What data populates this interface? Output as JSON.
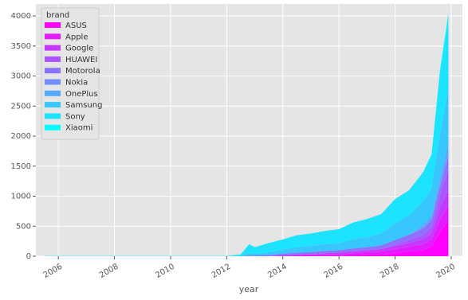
{
  "chart_data": {
    "type": "stacked_area",
    "x_label": "year",
    "legend_title": "brand",
    "legend": "upper left",
    "grid": true,
    "x": [
      2005.5,
      2006,
      2007,
      2008,
      2009,
      2010,
      2011,
      2012,
      2012.5,
      2012.8,
      2013,
      2013.5,
      2014,
      2014.5,
      2015,
      2015.5,
      2016,
      2016.5,
      2017,
      2017.5,
      2018,
      2018.5,
      2019,
      2019.3,
      2019.6,
      2019.9
    ],
    "xlim": [
      2005.2,
      2020.4
    ],
    "xticks": [
      2006,
      2008,
      2010,
      2012,
      2014,
      2016,
      2018,
      2020
    ],
    "ylim": [
      0,
      4200
    ],
    "yticks": [
      0,
      500,
      1000,
      1500,
      2000,
      2500,
      3000,
      3500,
      4000
    ],
    "series": [
      {
        "name": "ASUS",
        "color": "#ff00ff",
        "values": [
          0,
          0,
          0,
          0,
          0,
          0,
          0,
          0,
          0,
          0,
          0,
          0,
          0,
          0,
          0,
          0,
          0,
          10,
          20,
          20,
          50,
          80,
          100,
          160,
          400,
          600
        ]
      },
      {
        "name": "Apple",
        "color": "#e31cff",
        "values": [
          0,
          0,
          0,
          0,
          0,
          0,
          0,
          0,
          0,
          0,
          0,
          0,
          10,
          20,
          30,
          30,
          30,
          40,
          50,
          60,
          70,
          80,
          100,
          120,
          200,
          250
        ]
      },
      {
        "name": "Google",
        "color": "#c638ff",
        "values": [
          0,
          0,
          0,
          0,
          0,
          0,
          0,
          0,
          0,
          0,
          0,
          0,
          0,
          0,
          0,
          20,
          30,
          30,
          30,
          40,
          50,
          60,
          80,
          100,
          200,
          250
        ]
      },
      {
        "name": "HUAWEI",
        "color": "#aa55ff",
        "values": [
          0,
          0,
          0,
          0,
          0,
          0,
          0,
          0,
          0,
          0,
          0,
          0,
          0,
          0,
          0,
          0,
          0,
          0,
          0,
          0,
          20,
          50,
          80,
          100,
          200,
          350
        ]
      },
      {
        "name": "Motorola",
        "color": "#8e71ff",
        "values": [
          0,
          0,
          0,
          0,
          0,
          0,
          0,
          0,
          0,
          10,
          10,
          20,
          30,
          40,
          40,
          40,
          40,
          50,
          50,
          60,
          80,
          90,
          100,
          110,
          150,
          200
        ]
      },
      {
        "name": "Nokia",
        "color": "#718eff",
        "values": [
          0,
          0,
          0,
          0,
          0,
          0,
          0,
          0,
          0,
          0,
          0,
          0,
          0,
          0,
          0,
          0,
          0,
          0,
          0,
          0,
          0,
          0,
          20,
          30,
          50,
          80
        ]
      },
      {
        "name": "OnePlus",
        "color": "#55aaff",
        "values": [
          0,
          0,
          0,
          0,
          0,
          0,
          0,
          0,
          0,
          0,
          0,
          0,
          0,
          0,
          0,
          0,
          0,
          0,
          0,
          0,
          0,
          0,
          40,
          60,
          100,
          150
        ]
      },
      {
        "name": "Samsung",
        "color": "#38c6ff",
        "values": [
          0,
          0,
          0,
          0,
          0,
          0,
          0,
          0,
          5,
          40,
          30,
          50,
          70,
          90,
          100,
          110,
          120,
          150,
          170,
          200,
          280,
          320,
          400,
          450,
          750,
          900
        ]
      },
      {
        "name": "Sony",
        "color": "#1ce3ff",
        "values": [
          5,
          5,
          5,
          5,
          5,
          5,
          5,
          5,
          25,
          150,
          110,
          150,
          170,
          200,
          210,
          220,
          230,
          280,
          300,
          320,
          400,
          420,
          480,
          550,
          1000,
          1200
        ]
      },
      {
        "name": "Xiaomi",
        "color": "#00ffff",
        "values": [
          0,
          0,
          0,
          0,
          0,
          0,
          0,
          0,
          0,
          0,
          0,
          0,
          0,
          0,
          0,
          0,
          0,
          0,
          0,
          0,
          0,
          0,
          0,
          20,
          50,
          70
        ]
      }
    ]
  }
}
